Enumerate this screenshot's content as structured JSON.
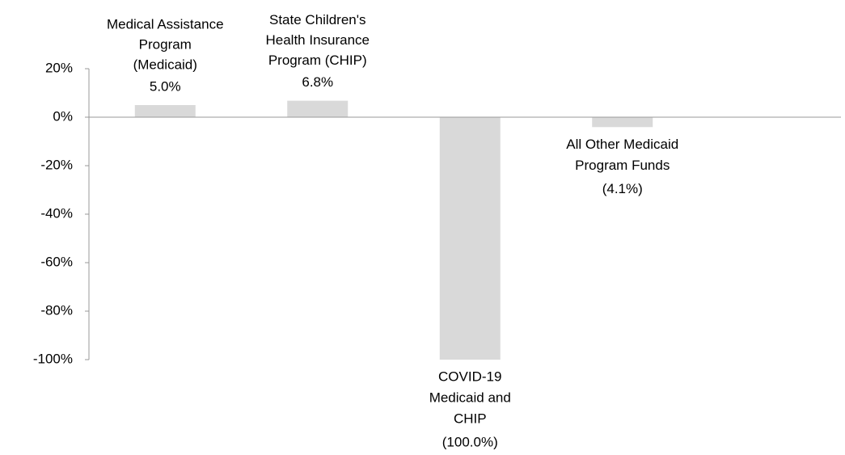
{
  "chart_data": {
    "type": "bar",
    "categories": [
      [
        "Medical Assistance",
        "Program",
        "(Medicaid)"
      ],
      [
        "State Children's",
        "Health Insurance",
        "Program (CHIP)"
      ],
      [
        "COVID-19",
        "Medicaid and",
        "CHIP"
      ],
      [
        "All Other Medicaid",
        "Program Funds"
      ]
    ],
    "values": [
      5.0,
      6.8,
      -100.0,
      -4.1
    ],
    "value_labels": [
      "5.0%",
      "6.8%",
      "(100.0%)",
      "(4.1%)"
    ],
    "color": "#d9d9d9",
    "ylim": [
      -100,
      20
    ],
    "yticks": [
      {
        "value": -100,
        "label": "-100%"
      },
      {
        "value": -80,
        "label": "-80%"
      },
      {
        "value": -60,
        "label": "-60%"
      },
      {
        "value": -40,
        "label": "-40%"
      },
      {
        "value": -20,
        "label": "-20%"
      },
      {
        "value": 0,
        "label": "0%"
      },
      {
        "value": 20,
        "label": "20%"
      }
    ],
    "grid": false
  }
}
